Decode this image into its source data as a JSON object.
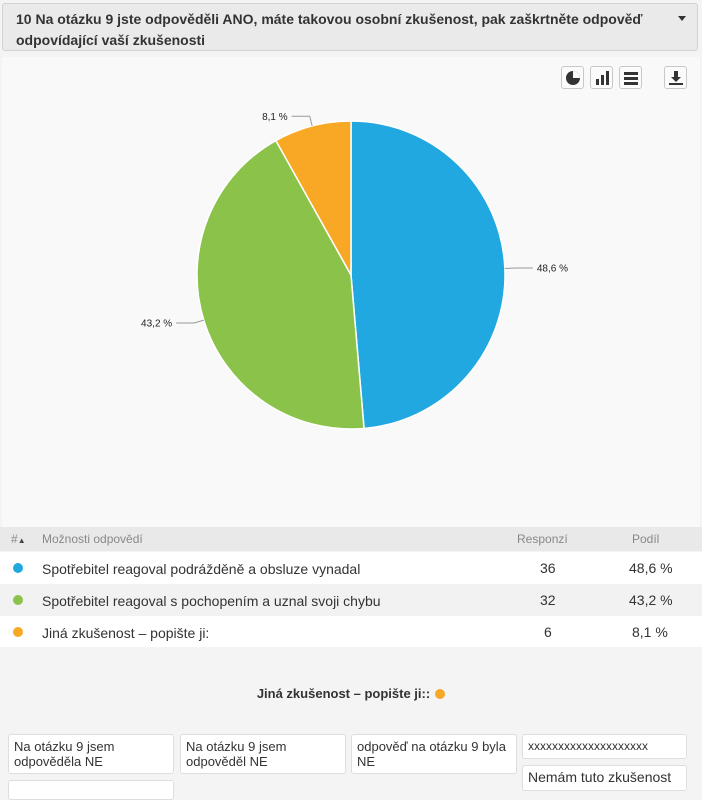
{
  "question": {
    "title": "10 Na otázku 9 jste odpověděli ANO, máte takovou osobní zkušenost, pak zaškrtněte odpověď odpovídající vaší zkušenosti"
  },
  "toolbar": {
    "pie_icon": "pie-chart-icon",
    "bar_icon": "bar-chart-icon",
    "table_icon": "table-icon",
    "download_icon": "download-icon"
  },
  "chart_data": {
    "type": "pie",
    "slices": [
      {
        "label": "Spotřebitel reagoval podrážděně a obsluze vynadal",
        "value": 48.6,
        "display": "48,6 %",
        "color": "#21a8e0"
      },
      {
        "label": "Spotřebitel reagoval s pochopením a uznal svoji chybu",
        "value": 43.2,
        "display": "43,2 %",
        "color": "#8bc34a"
      },
      {
        "label": "Jiná zkušenost – popište ji:",
        "value": 8.1,
        "display": "8,1 %",
        "color": "#f9a825"
      }
    ]
  },
  "table": {
    "headers": {
      "num": "#",
      "option": "Možnosti odpovědí",
      "responses": "Responzí",
      "share": "Podíl"
    },
    "rows": [
      {
        "label": "Spotřebitel reagoval podrážděně a obsluze vynadal",
        "responses": "36",
        "share": "48,6 %",
        "color": "#21a8e0"
      },
      {
        "label": "Spotřebitel reagoval s pochopením a uznal svoji chybu",
        "responses": "32",
        "share": "43,2 %",
        "color": "#8bc34a"
      },
      {
        "label": "Jiná zkušenost – popište ji:",
        "responses": "6",
        "share": "8,1 %",
        "color": "#f9a825"
      }
    ]
  },
  "other": {
    "title": "Jiná zkušenost – popište ji::",
    "answers": [
      "Na otázku 9 jsem odpověděla NE",
      "Na otázku 9 jsem odpověděl NE",
      "odpověď na otázku 9 byla NE",
      "xxxxxxxxxxxxxxxxxxxx",
      "Nemám tuto zkušenost",
      ""
    ]
  }
}
